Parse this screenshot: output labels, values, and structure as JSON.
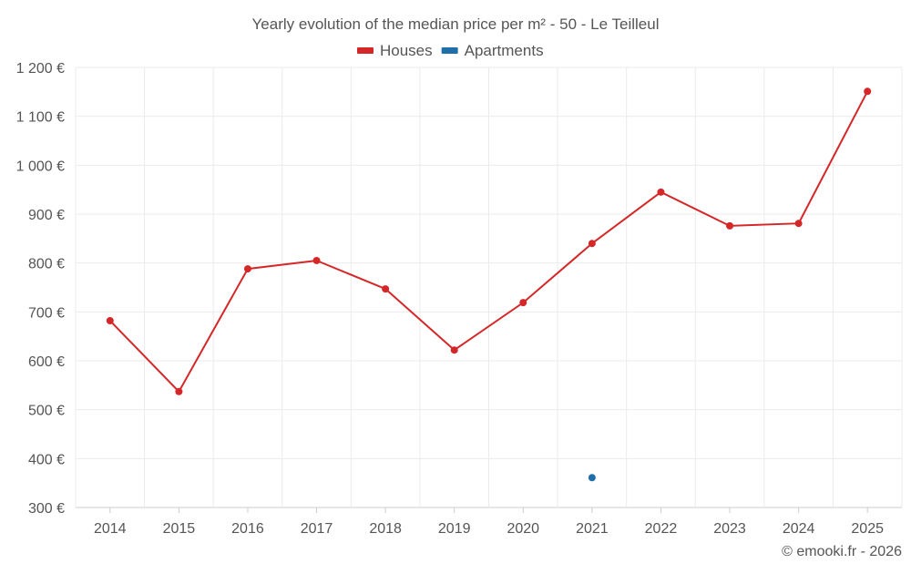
{
  "chart_data": {
    "type": "line",
    "title": "Yearly evolution of the median price per m² - 50 - Le Teilleul",
    "categories": [
      "2014",
      "2015",
      "2016",
      "2017",
      "2018",
      "2019",
      "2020",
      "2021",
      "2022",
      "2023",
      "2024",
      "2025"
    ],
    "series": [
      {
        "name": "Houses",
        "color": "#d62728",
        "values": [
          682,
          537,
          788,
          805,
          747,
          622,
          719,
          840,
          945,
          876,
          881,
          1151
        ]
      },
      {
        "name": "Apartments",
        "color": "#1f6fa8",
        "values": [
          null,
          null,
          null,
          null,
          null,
          null,
          null,
          361,
          null,
          null,
          null,
          null
        ]
      }
    ],
    "ylim": [
      300,
      1200
    ],
    "yticks": [
      300,
      400,
      500,
      600,
      700,
      800,
      900,
      1000,
      1100,
      1200
    ],
    "ytick_labels": [
      "300 €",
      "400 €",
      "500 €",
      "600 €",
      "700 €",
      "800 €",
      "900 €",
      "1 000 €",
      "1 100 €",
      "1 200 €"
    ],
    "grid": true,
    "legend_position": "top-center",
    "credit": "© emooki.fr - 2026"
  }
}
